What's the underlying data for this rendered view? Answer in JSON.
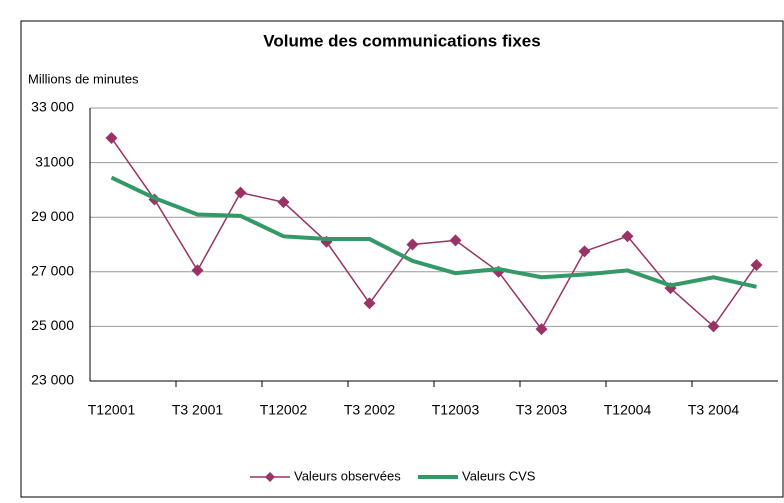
{
  "chart_data": {
    "type": "line",
    "title": "Volume des communications fixes",
    "y_label": "Millions de minutes",
    "categories": [
      "T12001",
      null,
      "T3 2001",
      null,
      "T12002",
      null,
      "T3 2002",
      null,
      "T12003",
      null,
      "T3 2003",
      null,
      "T12004",
      null,
      "T3 2004",
      null
    ],
    "series": [
      {
        "name": "Valeurs observées",
        "color": "#993366",
        "marker": "diamond",
        "values": [
          31900,
          29650,
          27050,
          29900,
          29550,
          28100,
          25850,
          28000,
          28150,
          27000,
          24900,
          27750,
          28300,
          26400,
          25000,
          27250
        ]
      },
      {
        "name": "Valeurs CVS",
        "color": "#339966",
        "marker": "none",
        "values": [
          30450,
          29700,
          29100,
          29050,
          28300,
          28200,
          28200,
          27400,
          26950,
          27100,
          26800,
          26900,
          27050,
          26500,
          26800,
          26450
        ]
      }
    ],
    "ylim": [
      23000,
      33000
    ],
    "yticks": [
      {
        "value": 23000,
        "label": "23 000"
      },
      {
        "value": 25000,
        "label": "25 000"
      },
      {
        "value": 27000,
        "label": "27 000"
      },
      {
        "value": 29000,
        "label": "29 000"
      },
      {
        "value": 31000,
        "label": "31000"
      },
      {
        "value": 33000,
        "label": "33 000"
      }
    ],
    "grid": true,
    "legend": "bottom"
  }
}
